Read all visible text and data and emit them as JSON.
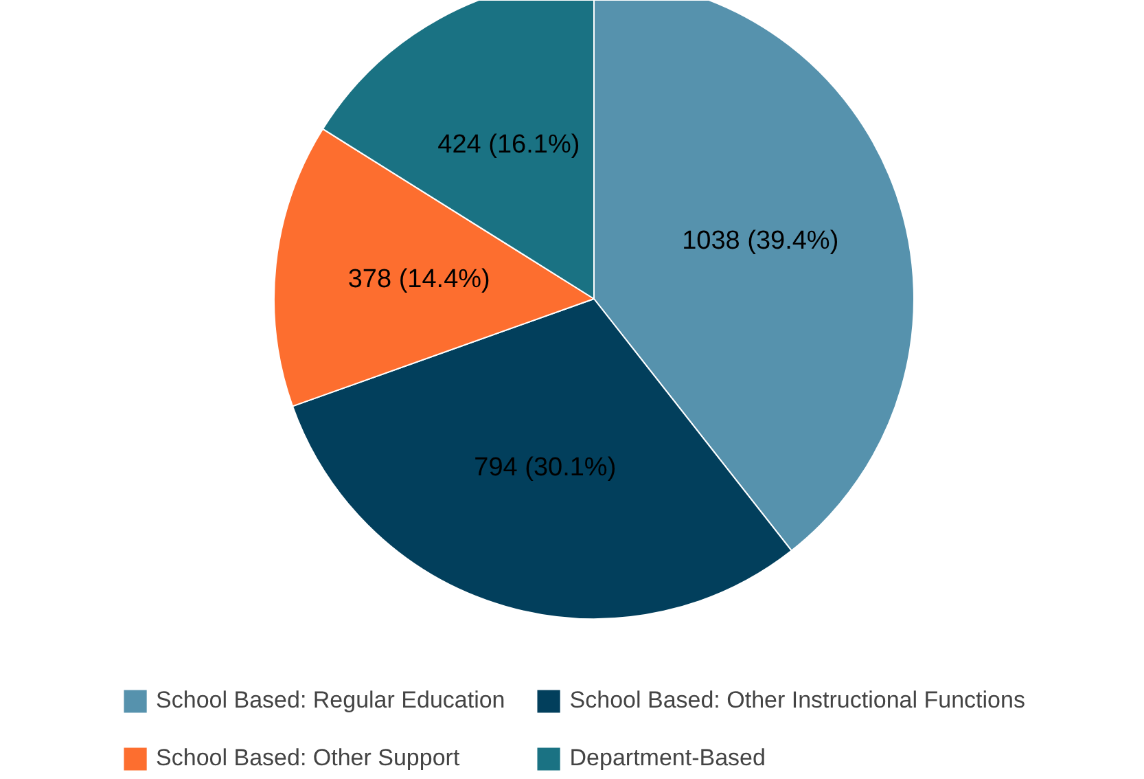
{
  "chart_data": {
    "type": "pie",
    "categories": [
      "School Based: Regular Education",
      "School Based: Other Instructional Functions",
      "School Based: Other Support",
      "Department-Based"
    ],
    "values": [
      1038,
      794,
      378,
      424
    ],
    "colors": [
      "#5692ad",
      "#023f5c",
      "#fd6e2f",
      "#1a7283"
    ],
    "value_labels": [
      "1038 (39.4%)",
      "794 (30.1%)",
      "378 (14.4%)",
      "424 (16.1%)"
    ],
    "legend": "bottom"
  }
}
